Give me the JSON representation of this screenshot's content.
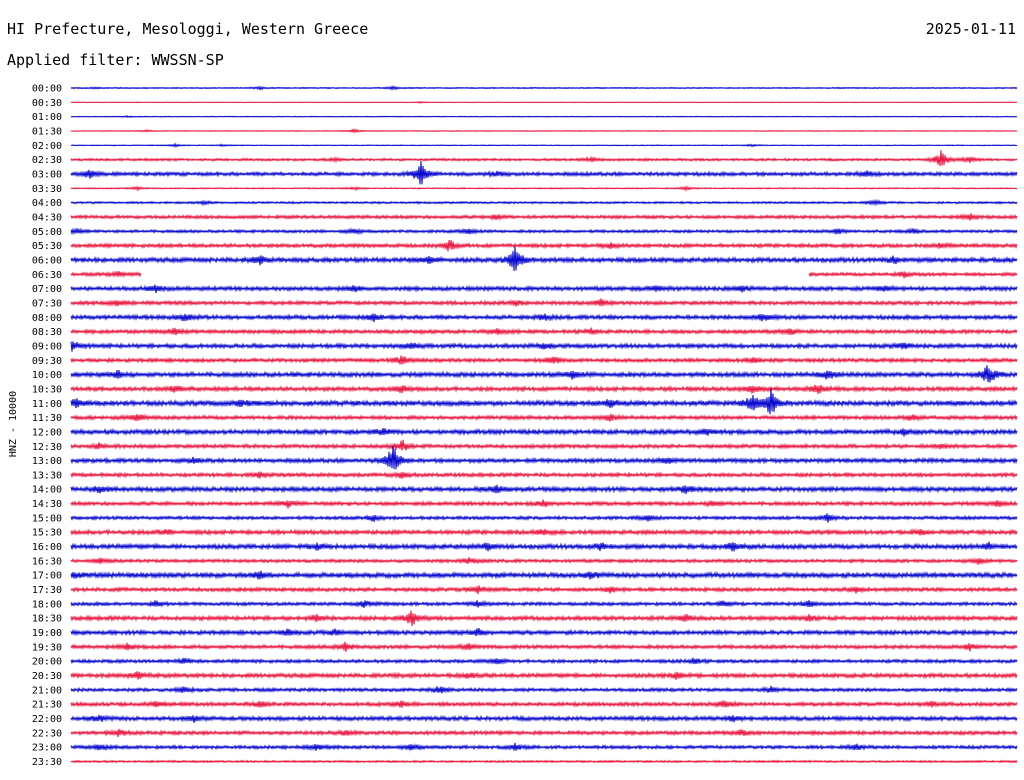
{
  "header": {
    "station": "HI Prefecture, Mesologgi, Western Greece",
    "date": "2025-01-11",
    "filter": "Applied filter: WWSSN-SP"
  },
  "chart_data": {
    "type": "line",
    "subtype": "helicorder",
    "ylabel": "HNZ - 10000",
    "colors": {
      "odd": "#0000cc",
      "even": "#e8103a"
    },
    "rows": [
      {
        "label": "00:00",
        "base": 0.6,
        "events": [
          [
            0.027,
            0.6
          ],
          [
            0.2,
            1.2
          ],
          [
            0.34,
            1.4
          ]
        ]
      },
      {
        "label": "00:30",
        "base": 0.3,
        "events": [
          [
            0.37,
            0.6
          ]
        ]
      },
      {
        "label": "01:00",
        "base": 0.4,
        "events": [
          [
            0.06,
            0.6
          ]
        ]
      },
      {
        "label": "01:30",
        "base": 0.4,
        "events": [
          [
            0.08,
            1.0
          ],
          [
            0.3,
            1.6
          ]
        ]
      },
      {
        "label": "02:00",
        "base": 0.4,
        "events": [
          [
            0.11,
            1.4
          ],
          [
            0.16,
            1.0
          ],
          [
            0.72,
            1.0
          ]
        ]
      },
      {
        "label": "02:30",
        "base": 1.2,
        "events": [
          [
            0.28,
            1.5
          ],
          [
            0.55,
            2.0
          ],
          [
            0.92,
            9.0
          ],
          [
            0.95,
            3.0
          ]
        ]
      },
      {
        "label": "03:00",
        "base": 1.8,
        "events": [
          [
            0.02,
            4.0
          ],
          [
            0.37,
            12.0
          ],
          [
            0.45,
            2.5
          ],
          [
            0.84,
            3.0
          ]
        ]
      },
      {
        "label": "03:30",
        "base": 0.6,
        "events": [
          [
            0.07,
            1.4
          ],
          [
            0.3,
            1.4
          ],
          [
            0.65,
            1.6
          ]
        ]
      },
      {
        "label": "04:00",
        "base": 1.0,
        "events": [
          [
            0.14,
            1.6
          ],
          [
            0.85,
            2.5
          ]
        ]
      },
      {
        "label": "04:30",
        "base": 1.6,
        "events": [
          [
            0.45,
            2.5
          ],
          [
            0.95,
            3.0
          ]
        ]
      },
      {
        "label": "05:00",
        "base": 1.4,
        "events": [
          [
            0.005,
            3.0
          ],
          [
            0.3,
            2.5
          ],
          [
            0.42,
            3.0
          ],
          [
            0.81,
            2.5
          ],
          [
            0.89,
            2.0
          ]
        ]
      },
      {
        "label": "05:30",
        "base": 1.8,
        "events": [
          [
            0.4,
            6.0
          ],
          [
            0.57,
            2.5
          ],
          [
            0.92,
            2.0
          ]
        ]
      },
      {
        "label": "06:00",
        "base": 2.2,
        "events": [
          [
            0.2,
            4.0
          ],
          [
            0.38,
            3.5
          ],
          [
            0.47,
            14.0
          ],
          [
            0.87,
            3.0
          ]
        ]
      },
      {
        "label": "06:30",
        "base": 1.6,
        "events": [
          [
            0.05,
            2.0
          ],
          [
            0.88,
            3.0
          ]
        ]
      },
      {
        "label": "07:00",
        "base": 2.0,
        "events": [
          [
            0.09,
            3.0
          ],
          [
            0.3,
            3.0
          ],
          [
            0.62,
            3.0
          ],
          [
            0.71,
            3.5
          ],
          [
            0.86,
            2.5
          ]
        ]
      },
      {
        "label": "07:30",
        "base": 1.8,
        "events": [
          [
            0.05,
            3.0
          ],
          [
            0.47,
            3.0
          ],
          [
            0.56,
            4.0
          ]
        ]
      },
      {
        "label": "08:00",
        "base": 2.0,
        "events": [
          [
            0.12,
            3.5
          ],
          [
            0.32,
            3.5
          ],
          [
            0.5,
            3.0
          ],
          [
            0.73,
            4.0
          ]
        ]
      },
      {
        "label": "08:30",
        "base": 1.8,
        "events": [
          [
            0.11,
            3.5
          ],
          [
            0.45,
            3.0
          ],
          [
            0.55,
            3.0
          ],
          [
            0.76,
            3.0
          ]
        ]
      },
      {
        "label": "09:00",
        "base": 2.0,
        "events": [
          [
            0.001,
            6.0
          ],
          [
            0.36,
            3.5
          ],
          [
            0.5,
            3.0
          ],
          [
            0.88,
            3.0
          ]
        ]
      },
      {
        "label": "09:30",
        "base": 1.8,
        "events": [
          [
            0.35,
            5.0
          ],
          [
            0.51,
            4.5
          ],
          [
            0.72,
            3.0
          ]
        ]
      },
      {
        "label": "10:00",
        "base": 2.2,
        "events": [
          [
            0.05,
            3.5
          ],
          [
            0.53,
            4.0
          ],
          [
            0.8,
            5.0
          ],
          [
            0.97,
            11.0
          ]
        ]
      },
      {
        "label": "10:30",
        "base": 2.0,
        "events": [
          [
            0.11,
            3.0
          ],
          [
            0.35,
            3.5
          ],
          [
            0.72,
            4.0
          ],
          [
            0.79,
            5.0
          ]
        ]
      },
      {
        "label": "11:00",
        "base": 2.4,
        "events": [
          [
            0.005,
            4.0
          ],
          [
            0.18,
            3.5
          ],
          [
            0.57,
            4.0
          ],
          [
            0.72,
            8.0
          ],
          [
            0.74,
            14.0
          ]
        ]
      },
      {
        "label": "11:30",
        "base": 1.8,
        "events": [
          [
            0.07,
            3.5
          ],
          [
            0.57,
            3.5
          ],
          [
            0.89,
            3.0
          ]
        ]
      },
      {
        "label": "12:00",
        "base": 2.2,
        "events": [
          [
            0.33,
            3.0
          ],
          [
            0.67,
            4.0
          ],
          [
            0.88,
            3.0
          ]
        ]
      },
      {
        "label": "12:30",
        "base": 1.8,
        "events": [
          [
            0.03,
            3.0
          ],
          [
            0.35,
            6.0
          ],
          [
            0.92,
            3.0
          ]
        ]
      },
      {
        "label": "13:00",
        "base": 2.0,
        "events": [
          [
            0.13,
            3.0
          ],
          [
            0.34,
            16.0
          ],
          [
            0.63,
            3.0
          ]
        ]
      },
      {
        "label": "13:30",
        "base": 1.8,
        "events": [
          [
            0.2,
            3.5
          ],
          [
            0.35,
            3.0
          ]
        ]
      },
      {
        "label": "14:00",
        "base": 2.2,
        "events": [
          [
            0.03,
            3.0
          ],
          [
            0.45,
            3.5
          ],
          [
            0.65,
            3.5
          ]
        ]
      },
      {
        "label": "14:30",
        "base": 1.8,
        "events": [
          [
            0.23,
            4.0
          ],
          [
            0.5,
            3.0
          ],
          [
            0.68,
            3.0
          ],
          [
            0.98,
            3.0
          ]
        ]
      },
      {
        "label": "15:00",
        "base": 1.6,
        "events": [
          [
            0.32,
            3.0
          ],
          [
            0.61,
            3.0
          ],
          [
            0.8,
            4.0
          ]
        ]
      },
      {
        "label": "15:30",
        "base": 2.0,
        "events": [
          [
            0.1,
            2.5
          ],
          [
            0.5,
            2.5
          ],
          [
            0.9,
            2.5
          ]
        ]
      },
      {
        "label": "16:00",
        "base": 2.2,
        "events": [
          [
            0.26,
            3.0
          ],
          [
            0.44,
            3.5
          ],
          [
            0.56,
            3.0
          ],
          [
            0.7,
            3.5
          ],
          [
            0.97,
            3.0
          ]
        ]
      },
      {
        "label": "16:30",
        "base": 1.6,
        "events": [
          [
            0.03,
            3.0
          ],
          [
            0.42,
            3.0
          ],
          [
            0.96,
            3.0
          ]
        ]
      },
      {
        "label": "17:00",
        "base": 2.4,
        "events": [
          [
            0.005,
            3.0
          ],
          [
            0.2,
            3.0
          ],
          [
            0.55,
            3.0
          ]
        ]
      },
      {
        "label": "17:30",
        "base": 1.8,
        "events": [
          [
            0.43,
            3.5
          ],
          [
            0.57,
            3.5
          ],
          [
            0.83,
            3.0
          ]
        ]
      },
      {
        "label": "18:00",
        "base": 1.6,
        "events": [
          [
            0.09,
            3.0
          ],
          [
            0.31,
            3.5
          ],
          [
            0.43,
            3.0
          ],
          [
            0.69,
            3.0
          ],
          [
            0.78,
            3.0
          ]
        ]
      },
      {
        "label": "18:30",
        "base": 2.0,
        "events": [
          [
            0.26,
            3.5
          ],
          [
            0.36,
            8.0
          ],
          [
            0.65,
            3.5
          ],
          [
            0.78,
            3.5
          ]
        ]
      },
      {
        "label": "19:00",
        "base": 2.0,
        "events": [
          [
            0.23,
            3.5
          ],
          [
            0.28,
            3.0
          ],
          [
            0.43,
            3.5
          ]
        ]
      },
      {
        "label": "19:30",
        "base": 1.8,
        "events": [
          [
            0.06,
            3.0
          ],
          [
            0.29,
            4.0
          ],
          [
            0.42,
            3.0
          ],
          [
            0.95,
            3.0
          ]
        ]
      },
      {
        "label": "20:00",
        "base": 1.6,
        "events": [
          [
            0.12,
            3.0
          ],
          [
            0.45,
            3.0
          ],
          [
            0.66,
            3.0
          ]
        ]
      },
      {
        "label": "20:30",
        "base": 2.0,
        "events": [
          [
            0.07,
            3.5
          ],
          [
            0.42,
            2.5
          ],
          [
            0.64,
            3.0
          ]
        ]
      },
      {
        "label": "21:00",
        "base": 1.6,
        "events": [
          [
            0.12,
            3.0
          ],
          [
            0.39,
            4.0
          ],
          [
            0.74,
            3.0
          ]
        ]
      },
      {
        "label": "21:30",
        "base": 1.8,
        "events": [
          [
            0.09,
            3.0
          ],
          [
            0.2,
            3.0
          ],
          [
            0.35,
            3.0
          ],
          [
            0.69,
            3.5
          ],
          [
            0.91,
            3.0
          ]
        ]
      },
      {
        "label": "22:00",
        "base": 2.0,
        "events": [
          [
            0.03,
            3.0
          ],
          [
            0.13,
            3.0
          ],
          [
            0.7,
            3.0
          ]
        ]
      },
      {
        "label": "22:30",
        "base": 1.8,
        "events": [
          [
            0.05,
            3.5
          ],
          [
            0.29,
            3.0
          ],
          [
            0.71,
            3.0
          ]
        ]
      },
      {
        "label": "23:00",
        "base": 1.6,
        "events": [
          [
            0.03,
            3.0
          ],
          [
            0.26,
            3.5
          ],
          [
            0.36,
            3.5
          ],
          [
            0.47,
            3.0
          ],
          [
            0.83,
            3.0
          ]
        ]
      },
      {
        "label": "23:30",
        "base": 1.0,
        "events": []
      }
    ]
  }
}
